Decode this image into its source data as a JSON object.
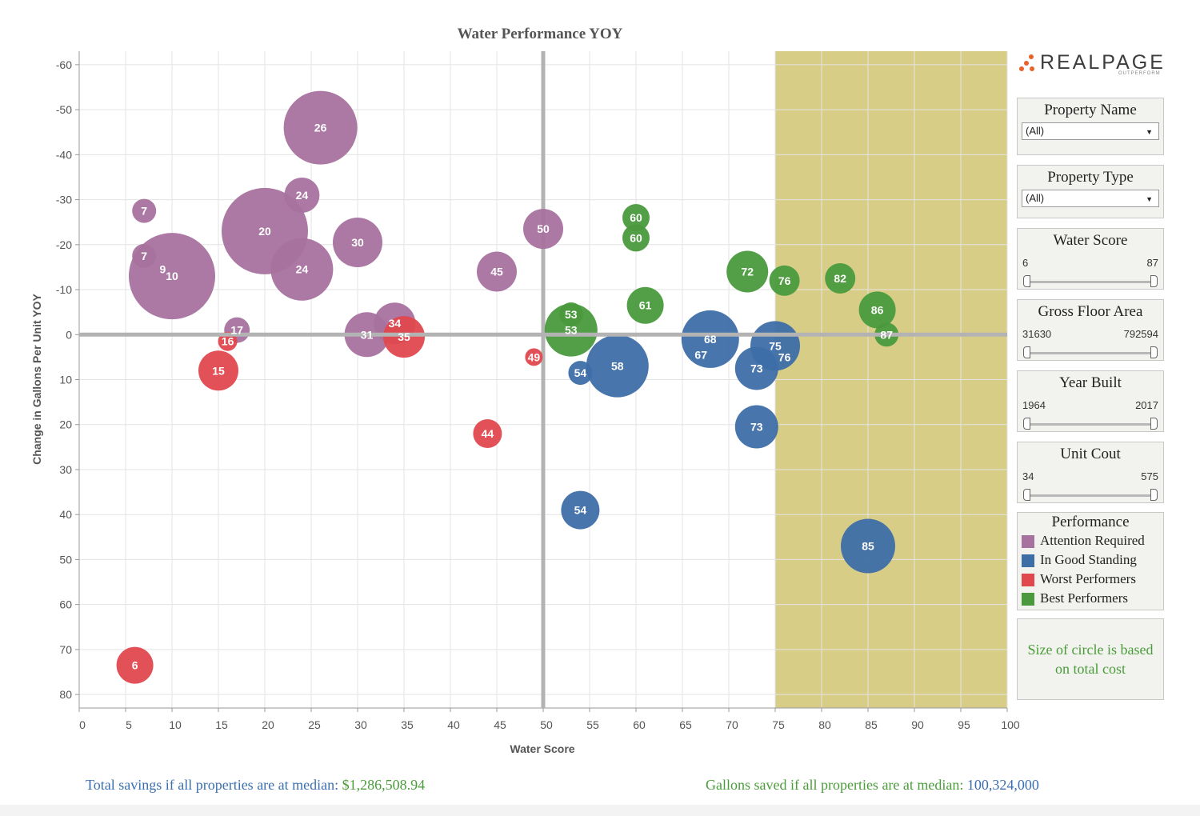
{
  "chart_data": {
    "type": "scatter",
    "title": "Water Performance YOY",
    "xlabel": "Water Score",
    "ylabel": "Change in Gallons Per Unit YOY",
    "xlim": [
      0,
      100
    ],
    "ylim": [
      -63,
      83
    ],
    "y_axis_inverted": true,
    "x_ticks": [
      0,
      5,
      10,
      15,
      20,
      25,
      30,
      35,
      40,
      45,
      50,
      55,
      60,
      65,
      70,
      75,
      80,
      85,
      90,
      95,
      100
    ],
    "y_ticks": [
      -60,
      -50,
      -40,
      -30,
      -20,
      -10,
      0,
      10,
      20,
      30,
      40,
      50,
      60,
      70,
      80
    ],
    "grid": true,
    "reference_lines": {
      "x": 50,
      "y": 0
    },
    "highlight_band": {
      "x_from": 75,
      "x_to": 100,
      "color": "#d8cd87"
    },
    "size_encoding": "total cost",
    "colors": {
      "Attention Required": "#a8729f",
      "In Good Standing": "#3e6ea6",
      "Worst Performers": "#e0484e",
      "Best Performers": "#4a9a3d"
    },
    "series": [
      {
        "name": "Attention Required",
        "points": [
          {
            "x": 26,
            "y": -46,
            "size": 46,
            "label": "26"
          },
          {
            "x": 7,
            "y": -27.5,
            "size": 15,
            "label": "7"
          },
          {
            "x": 7,
            "y": -17.5,
            "size": 15,
            "label": "7"
          },
          {
            "x": 10,
            "y": -13,
            "size": 54,
            "label": "10"
          },
          {
            "x": 9,
            "y": -14.5,
            "size": 0,
            "label": "9"
          },
          {
            "x": 20,
            "y": -23,
            "size": 54,
            "label": "20"
          },
          {
            "x": 24,
            "y": -31,
            "size": 22,
            "label": "24"
          },
          {
            "x": 24,
            "y": -14.5,
            "size": 39,
            "label": "24"
          },
          {
            "x": 30,
            "y": -20.5,
            "size": 31,
            "label": "30"
          },
          {
            "x": 45,
            "y": -14,
            "size": 25,
            "label": "45"
          },
          {
            "x": 50,
            "y": -23.5,
            "size": 25,
            "label": "50"
          },
          {
            "x": 17,
            "y": -1,
            "size": 16,
            "label": "17"
          },
          {
            "x": 31,
            "y": 0,
            "size": 28,
            "label": "31"
          },
          {
            "x": 34,
            "y": -2.5,
            "size": 26,
            "label": "34"
          }
        ]
      },
      {
        "name": "In Good Standing",
        "points": [
          {
            "x": 68,
            "y": 1,
            "size": 36,
            "label": "68"
          },
          {
            "x": 67,
            "y": 4.5,
            "size": 0,
            "label": "67"
          },
          {
            "x": 75,
            "y": 2.5,
            "size": 31,
            "label": "75"
          },
          {
            "x": 76,
            "y": 5,
            "size": 0,
            "label": "76"
          },
          {
            "x": 73,
            "y": 7.5,
            "size": 27,
            "label": "73"
          },
          {
            "x": 58,
            "y": 7,
            "size": 39,
            "label": "58"
          },
          {
            "x": 54,
            "y": 8.5,
            "size": 15,
            "label": "54"
          },
          {
            "x": 73,
            "y": 20.5,
            "size": 27,
            "label": "73"
          },
          {
            "x": 54,
            "y": 39,
            "size": 24,
            "label": "54"
          },
          {
            "x": 85,
            "y": 47,
            "size": 34,
            "label": "85"
          }
        ]
      },
      {
        "name": "Worst Performers",
        "points": [
          {
            "x": 16,
            "y": 1.5,
            "size": 12,
            "label": "16"
          },
          {
            "x": 15,
            "y": 8,
            "size": 25,
            "label": "15"
          },
          {
            "x": 35,
            "y": 0.5,
            "size": 26,
            "label": "35"
          },
          {
            "x": 49,
            "y": 5,
            "size": 11,
            "label": "49"
          },
          {
            "x": 44,
            "y": 22,
            "size": 18,
            "label": "44"
          },
          {
            "x": 6,
            "y": 73.5,
            "size": 23,
            "label": "6"
          }
        ]
      },
      {
        "name": "Best Performers",
        "points": [
          {
            "x": 60,
            "y": -26,
            "size": 17,
            "label": "60"
          },
          {
            "x": 60,
            "y": -21.5,
            "size": 17,
            "label": "60"
          },
          {
            "x": 61,
            "y": -6.5,
            "size": 23,
            "label": "61"
          },
          {
            "x": 53,
            "y": -4.5,
            "size": 15,
            "label": "53"
          },
          {
            "x": 53,
            "y": -1,
            "size": 33,
            "label": "53"
          },
          {
            "x": 72,
            "y": -14,
            "size": 26,
            "label": "72"
          },
          {
            "x": 76,
            "y": -12,
            "size": 19,
            "label": "76"
          },
          {
            "x": 82,
            "y": -12.5,
            "size": 19,
            "label": "82"
          },
          {
            "x": 86,
            "y": -5.5,
            "size": 23,
            "label": "86"
          },
          {
            "x": 87,
            "y": 0,
            "size": 15,
            "label": "87"
          }
        ]
      }
    ]
  },
  "logo": {
    "text": "REALPAGE",
    "tagline": "OUTPERFORM"
  },
  "filters": {
    "property_name": {
      "title": "Property Name",
      "value": "(All)"
    },
    "property_type": {
      "title": "Property Type",
      "value": "(All)"
    },
    "water_score": {
      "title": "Water Score",
      "min": "6",
      "max": "87"
    },
    "gross_floor_area": {
      "title": "Gross Floor Area",
      "min": "31630",
      "max": "792594"
    },
    "year_built": {
      "title": "Year Built",
      "min": "1964",
      "max": "2017"
    },
    "unit_count": {
      "title": "Unit Cout",
      "min": "34",
      "max": "575"
    }
  },
  "legend": {
    "title": "Performance",
    "items": [
      {
        "label": "Attention Required",
        "color": "#a8729f"
      },
      {
        "label": "In Good Standing",
        "color": "#3e6ea6"
      },
      {
        "label": "Worst Performers",
        "color": "#e0484e"
      },
      {
        "label": "Best Performers",
        "color": "#4a9a3d"
      }
    ]
  },
  "note": {
    "line1": "Size of circle is based",
    "line2": "on total cost"
  },
  "footer": {
    "savings_label": "Total savings if all properties are at median:",
    "savings_value": "$1,286,508.94",
    "gallons_label": "Gallons saved if all properties are at median:",
    "gallons_value": "100,324,000"
  }
}
